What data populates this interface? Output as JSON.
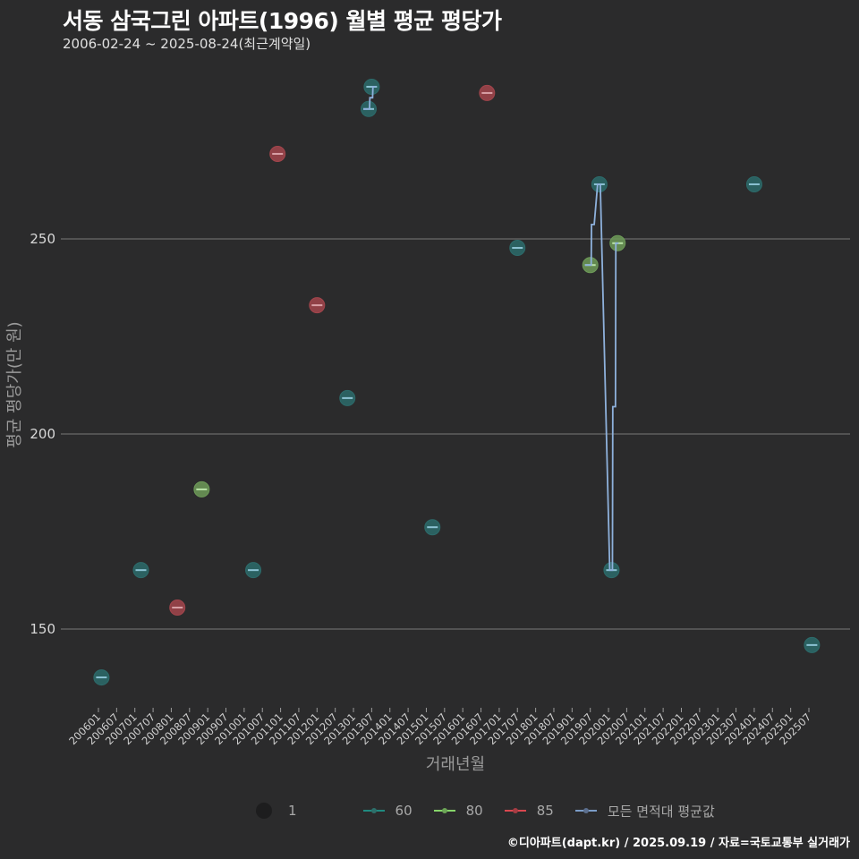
{
  "header": {
    "title": "서동 삼국그린 아파트(1996) 월별 평균 평당가",
    "subtitle": "2006-02-24 ~ 2025-08-24(최근계약일)"
  },
  "footer": {
    "credit": "©디아파트(dapt.kr) / 2025.09.19 / 자료=국토교통부 실거래가"
  },
  "legend": {
    "size_label": "1",
    "items": [
      {
        "label": "60",
        "color": "#1f8a80"
      },
      {
        "label": "80",
        "color": "#86d46a"
      },
      {
        "label": "85",
        "color": "#d9474f"
      },
      {
        "label": "모든 면적대 평균값",
        "color": "#7b9cc7"
      }
    ]
  },
  "colors": {
    "background": "#2b2b2c",
    "grid": "#6a6a6a",
    "s60_fill": "#2c6b6b",
    "s80_fill": "#6d9a58",
    "s85_fill": "#a3454c",
    "avg_line": "#8eb1dc"
  },
  "chart_data": {
    "type": "scatter",
    "title": "서동 삼국그린 아파트(1996) 월별 평균 평당가",
    "subtitle": "2006-02-24 ~ 2025-08-24(최근계약일)",
    "xlabel": "거래년월",
    "ylabel": "평균 평당가(만 원)",
    "ylim": [
      126,
      300
    ],
    "yticks": [
      150,
      200,
      250
    ],
    "grid": true,
    "legend_position": "bottom",
    "xticks": [
      "200601",
      "200607",
      "200701",
      "200707",
      "200801",
      "200807",
      "200901",
      "200907",
      "201001",
      "201007",
      "201101",
      "201107",
      "201201",
      "201207",
      "201301",
      "201307",
      "201401",
      "201407",
      "201501",
      "201507",
      "201601",
      "201607",
      "201701",
      "201707",
      "201801",
      "201807",
      "201901",
      "201907",
      "202001",
      "202007",
      "202101",
      "202107",
      "202201",
      "202207",
      "202301",
      "202307",
      "202401",
      "202407",
      "202501",
      "202507"
    ],
    "series": [
      {
        "name": "60",
        "points": [
          {
            "month": "200602",
            "value": 137.6
          },
          {
            "month": "200703",
            "value": 165.1
          },
          {
            "month": "201004",
            "value": 165.1
          },
          {
            "month": "201211",
            "value": 209.2
          },
          {
            "month": "201306",
            "value": 283.3
          },
          {
            "month": "201307",
            "value": 289.0
          },
          {
            "month": "201503",
            "value": 176.1
          },
          {
            "month": "201707",
            "value": 247.7
          },
          {
            "month": "201910",
            "value": 264.0
          },
          {
            "month": "202002",
            "value": 165.1
          },
          {
            "month": "202401",
            "value": 264.0
          },
          {
            "month": "202508",
            "value": 145.9
          }
        ]
      },
      {
        "name": "80",
        "points": [
          {
            "month": "200811",
            "value": 185.8
          },
          {
            "month": "201907",
            "value": 243.3
          },
          {
            "month": "202004",
            "value": 248.9
          }
        ]
      },
      {
        "name": "85",
        "points": [
          {
            "month": "200803",
            "value": 155.5
          },
          {
            "month": "201012",
            "value": 271.8
          },
          {
            "month": "201201",
            "value": 233.0
          },
          {
            "month": "201609",
            "value": 287.4
          }
        ]
      },
      {
        "name": "모든 면적대 평균값",
        "type": "step-line",
        "points": [
          {
            "month": "201306",
            "value": 283.3
          },
          {
            "month": "201307",
            "value": 286.2
          },
          {
            "month": "201308",
            "value": 289.0
          },
          {
            "month": "201907",
            "value": 243.3
          },
          {
            "month": "201908",
            "value": 253.7
          },
          {
            "month": "201910",
            "value": 264.0
          },
          {
            "month": "202002",
            "value": 165.1
          },
          {
            "month": "202003",
            "value": 207.0
          },
          {
            "month": "202004",
            "value": 248.9
          }
        ]
      }
    ]
  }
}
